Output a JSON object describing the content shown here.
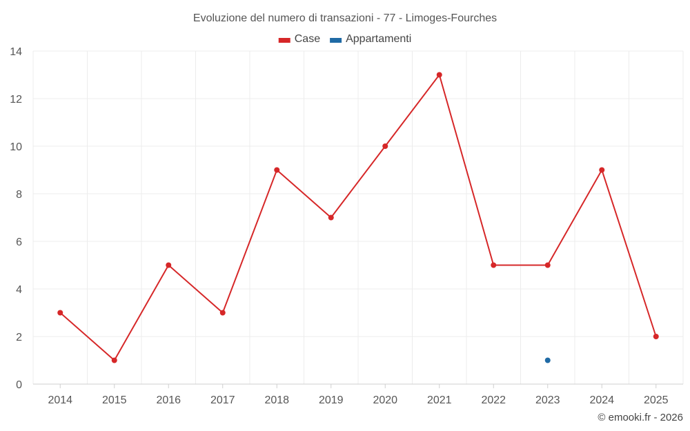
{
  "chart_data": {
    "type": "line",
    "title": "Evoluzione del numero di transazioni - 77 - Limoges-Fourches",
    "categories": [
      "2014",
      "2015",
      "2016",
      "2017",
      "2018",
      "2019",
      "2020",
      "2021",
      "2022",
      "2023",
      "2024",
      "2025"
    ],
    "series": [
      {
        "name": "Case",
        "color": "#d62728",
        "values": [
          3,
          1,
          5,
          3,
          9,
          7,
          10,
          13,
          5,
          5,
          9,
          2
        ]
      },
      {
        "name": "Appartamenti",
        "color": "#1f6aa5",
        "values": [
          null,
          null,
          null,
          null,
          null,
          null,
          null,
          null,
          null,
          1,
          null,
          null
        ]
      }
    ],
    "yticks": [
      0,
      2,
      4,
      6,
      8,
      10,
      12,
      14
    ],
    "ylim": [
      0,
      14
    ],
    "xlabel": "",
    "ylabel": "",
    "grid": true,
    "legend_position": "top-center"
  },
  "credit": "© emooki.fr - 2026"
}
